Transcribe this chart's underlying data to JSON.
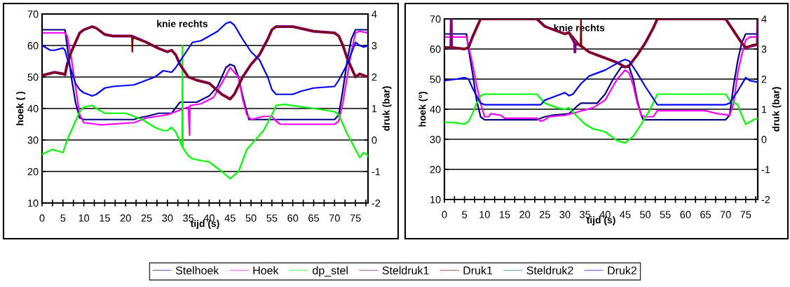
{
  "chart_data": [
    {
      "type": "line",
      "title": "knie rechts",
      "xlabel": "tijd (s)",
      "ylabel": "hoek ( )",
      "y2label": "druk (bar)",
      "xlim": [
        0,
        78
      ],
      "ylim": [
        10,
        70
      ],
      "y2lim": [
        -2,
        4
      ],
      "xticks": [
        0,
        {
          "value": 2.5,
          "label": null
        },
        5,
        {
          "value": 7.5,
          "label": null
        },
        10,
        {
          "value": 12.5,
          "label": null
        },
        15,
        {
          "value": 17.5,
          "label": null
        },
        20,
        {
          "value": 22.5,
          "label": null
        },
        25,
        {
          "value": 27.5,
          "label": null
        },
        30,
        {
          "value": 32.5,
          "label": null
        },
        35,
        {
          "value": 37.5,
          "label": null
        },
        40,
        {
          "value": 42.5,
          "label": null
        },
        45,
        {
          "value": 47.5,
          "label": null
        },
        50,
        {
          "value": 52.5,
          "label": null
        },
        55,
        {
          "value": 57.5,
          "label": null
        },
        60,
        {
          "value": 62.5,
          "label": null
        },
        65,
        {
          "value": 67.5,
          "label": null
        },
        70,
        {
          "value": 72.5,
          "label": null
        },
        75,
        {
          "value": 77.5,
          "label": null
        }
      ],
      "yticks": [
        10,
        20,
        30,
        40,
        50,
        60,
        70
      ],
      "y2ticks": [
        -2,
        -1,
        0,
        1,
        2,
        3,
        4
      ],
      "grid": "y",
      "legend": "bottom",
      "line_style": "solid",
      "series": [
        {
          "name": "Stelhoek",
          "color": "#000080",
          "x": [
            0,
            5.5,
            6,
            7,
            8,
            9,
            10,
            22,
            23,
            25,
            28,
            31,
            33,
            37,
            40,
            42,
            44,
            45,
            46,
            47,
            48,
            49.5,
            70,
            71,
            72,
            73,
            74,
            75,
            78
          ],
          "values": [
            65,
            65,
            60,
            50,
            42,
            37,
            36.5,
            36.5,
            37,
            37.5,
            38.5,
            38.5,
            42,
            42,
            44,
            47,
            53,
            54,
            53.5,
            50,
            44,
            36.5,
            36.5,
            38,
            46,
            55,
            62,
            65,
            65
          ]
        },
        {
          "name": "Hoek",
          "color": "#ff00ff",
          "x": [
            0,
            5.5,
            6,
            7,
            8,
            9,
            10,
            13,
            14,
            22,
            25,
            30,
            32,
            34,
            35,
            35.3,
            35.4,
            35.6,
            38,
            41,
            43,
            45,
            47,
            48,
            49,
            50,
            53,
            55,
            56,
            57,
            70,
            71,
            72,
            73,
            74,
            75,
            76,
            78
          ],
          "values": [
            64,
            64,
            63,
            56,
            47,
            38,
            35.5,
            35,
            34.8,
            35.5,
            37,
            38,
            39,
            40,
            40.5,
            31.5,
            40.8,
            41,
            41.5,
            43.5,
            48,
            53,
            50,
            43,
            38,
            36.5,
            37.5,
            37.5,
            36,
            35,
            35,
            36,
            42,
            50,
            58,
            64,
            64.5,
            64
          ]
        },
        {
          "name": "dp_stel",
          "color": "#00ff00",
          "axis": "y2",
          "x": [
            0,
            2.5,
            5,
            6,
            8,
            9,
            10,
            12,
            13,
            15,
            20,
            22,
            24,
            27,
            29,
            30,
            31,
            32,
            33.5,
            33.6,
            33.7,
            35,
            36,
            38,
            40,
            43,
            45,
            47,
            49,
            51,
            53,
            55,
            56,
            58,
            65,
            70,
            71,
            73,
            75,
            76,
            77,
            78
          ],
          "values": [
            -0.45,
            -0.3,
            -0.4,
            0,
            0.6,
            0.9,
            1.05,
            1.1,
            1.0,
            0.85,
            0.85,
            0.75,
            0.65,
            0.4,
            0.3,
            0.3,
            0.4,
            0.25,
            -0.2,
            3.0,
            -0.25,
            -0.5,
            -0.6,
            -0.65,
            -0.7,
            -1.0,
            -1.23,
            -1.0,
            -0.3,
            0,
            0.3,
            0.8,
            1.1,
            1.13,
            1.0,
            0.9,
            0.8,
            0.2,
            -0.3,
            -0.55,
            -0.4,
            -0.5
          ]
        },
        {
          "name": "Steldruk1",
          "color": "#800080",
          "axis": "y2",
          "x": [
            0,
            3,
            5,
            5.5,
            6,
            7,
            8,
            9,
            10,
            12,
            13,
            15,
            17,
            21.5,
            25,
            28,
            30,
            31,
            32,
            33,
            34,
            35,
            37,
            40,
            43,
            45,
            46,
            48,
            50,
            52,
            54,
            55,
            56,
            60,
            65,
            70,
            71,
            72,
            73,
            74,
            75,
            76,
            78
          ],
          "values": [
            2.05,
            2.15,
            2.1,
            2.07,
            2.4,
            2.8,
            3.1,
            3.4,
            3.5,
            3.6,
            3.55,
            3.35,
            3.3,
            3.3,
            3.1,
            2.9,
            2.8,
            2.85,
            2.7,
            2.4,
            2.2,
            2.0,
            1.9,
            1.8,
            1.45,
            1.3,
            1.45,
            2.0,
            2.4,
            2.7,
            3.2,
            3.5,
            3.6,
            3.6,
            3.45,
            3.4,
            3.3,
            3.0,
            2.6,
            2.3,
            2.0,
            2.1,
            2.0
          ]
        },
        {
          "name": "Druk1",
          "color": "#800000",
          "axis": "y2",
          "x": [
            0,
            3,
            5,
            5.5,
            6,
            7,
            8,
            9,
            10,
            12,
            13,
            15,
            17,
            21.5,
            21.6,
            21.7,
            25,
            28,
            30,
            31,
            32,
            33,
            34,
            35,
            37,
            40,
            43,
            45,
            46,
            48,
            50,
            52,
            54,
            55,
            56,
            60,
            65,
            70,
            71,
            72,
            73,
            74,
            75,
            76,
            78
          ],
          "values": [
            2.05,
            2.15,
            2.1,
            2.07,
            2.4,
            2.8,
            3.1,
            3.4,
            3.5,
            3.6,
            3.55,
            3.35,
            3.3,
            3.3,
            2.8,
            3.25,
            3.1,
            2.9,
            2.8,
            2.85,
            2.7,
            2.4,
            2.2,
            2.0,
            1.9,
            1.8,
            1.45,
            1.3,
            1.45,
            2.0,
            2.4,
            2.7,
            3.2,
            3.5,
            3.6,
            3.6,
            3.45,
            3.4,
            3.3,
            3.0,
            2.6,
            2.3,
            2.0,
            2.1,
            2.0
          ]
        },
        {
          "name": "Steldruk2",
          "color": "#008080",
          "axis": "y2",
          "values": [
            null
          ]
        },
        {
          "name": "Druk2",
          "color": "#0000ff",
          "axis": "y2",
          "x": [
            0,
            2,
            3,
            5,
            5.5,
            6,
            7,
            8,
            9,
            10,
            12,
            13,
            15,
            17,
            22,
            25,
            27,
            29,
            31,
            32,
            34,
            36,
            38,
            40,
            42,
            44,
            45,
            46,
            48,
            50,
            52,
            54,
            55,
            56,
            60,
            62,
            65,
            70,
            71,
            73,
            75,
            76,
            77,
            78
          ],
          "values": [
            3.0,
            2.85,
            2.85,
            2.92,
            2.85,
            2.6,
            2.2,
            1.8,
            1.6,
            1.5,
            1.4,
            1.45,
            1.65,
            1.7,
            1.75,
            1.9,
            2.0,
            2.2,
            2.15,
            2.3,
            2.7,
            3.1,
            3.15,
            3.3,
            3.45,
            3.7,
            3.75,
            3.65,
            3.2,
            2.8,
            2.55,
            2.0,
            1.6,
            1.45,
            1.45,
            1.55,
            1.65,
            1.7,
            1.9,
            2.4,
            3.1,
            3.0,
            2.95,
            3.0
          ]
        }
      ]
    },
    {
      "type": "line",
      "title": "knie rechts",
      "xlabel": "tijd (s)",
      "ylabel": "hoek (°)",
      "y2label": "druk (bar)",
      "xlim": [
        0,
        78
      ],
      "ylim": [
        10,
        70
      ],
      "y2lim": [
        -2,
        4
      ],
      "xticks": [
        0,
        {
          "value": 2.5,
          "label": null
        },
        5,
        {
          "value": 7.5,
          "label": null
        },
        10,
        {
          "value": 12.5,
          "label": null
        },
        15,
        {
          "value": 17.5,
          "label": null
        },
        20,
        {
          "value": 22.5,
          "label": null
        },
        25,
        {
          "value": 27.5,
          "label": null
        },
        30,
        {
          "value": 32.5,
          "label": null
        },
        35,
        {
          "value": 37.5,
          "label": null
        },
        40,
        {
          "value": 42.5,
          "label": null
        },
        45,
        {
          "value": 47.5,
          "label": null
        },
        50,
        {
          "value": 52.5,
          "label": null
        },
        55,
        {
          "value": 57.5,
          "label": null
        },
        60,
        {
          "value": 62.5,
          "label": null
        },
        65,
        {
          "value": 67.5,
          "label": null
        },
        70,
        {
          "value": 72.5,
          "label": null
        },
        75,
        {
          "value": 77.5,
          "label": null
        }
      ],
      "yticks": [
        10,
        20,
        30,
        40,
        50,
        60,
        70
      ],
      "y2ticks": [
        -2,
        -1,
        0,
        1,
        2,
        3,
        4
      ],
      "grid": "y",
      "line_style": "solid",
      "series": [
        {
          "color": "#000080",
          "x": [
            0,
            5.5,
            6,
            7,
            8,
            9,
            10,
            23,
            25,
            27,
            31,
            33,
            34,
            38,
            40,
            42,
            44,
            46,
            47,
            48,
            49,
            49.5,
            70,
            71,
            72,
            73,
            74,
            75,
            78
          ],
          "values": [
            65,
            65,
            60,
            52,
            43,
            37.5,
            36.5,
            36.5,
            37.5,
            38,
            38.5,
            41,
            42,
            42,
            45,
            50,
            54,
            54,
            50,
            43,
            38,
            36.5,
            36.5,
            38,
            48,
            56,
            62,
            65,
            65
          ]
        },
        {
          "color": "#ff00ff",
          "x": [
            0,
            5.5,
            6,
            7,
            8,
            9,
            10,
            11,
            11.5,
            14,
            15,
            23,
            24,
            25,
            26,
            30,
            33,
            37,
            40,
            43,
            45,
            46,
            47,
            48,
            49,
            50,
            52,
            53,
            65,
            68,
            71,
            72,
            73,
            74,
            75,
            76,
            78
          ],
          "values": [
            64,
            64,
            61,
            55,
            48,
            42,
            37.5,
            37.5,
            38.5,
            38,
            37,
            37,
            36,
            36.5,
            37.5,
            38,
            39,
            40.5,
            43,
            50,
            53,
            52,
            48,
            42,
            38,
            37.5,
            37.5,
            39.5,
            39.5,
            38.5,
            38,
            42,
            52,
            58,
            63,
            64,
            64
          ]
        },
        {
          "color": "#00ff00",
          "axis": "y2",
          "x": [
            0,
            3,
            5,
            6,
            7,
            8,
            9,
            10,
            23,
            25,
            28,
            30,
            31,
            32,
            35,
            37,
            40,
            43,
            45,
            47,
            49,
            51,
            53,
            70,
            71,
            73,
            74,
            75,
            77,
            78
          ],
          "values": [
            0.57,
            0.55,
            0.5,
            0.6,
            0.85,
            1.2,
            1.45,
            1.5,
            1.5,
            1.2,
            1.05,
            1.0,
            1.05,
            0.9,
            0.5,
            0.35,
            0.25,
            -0.05,
            -0.12,
            0.1,
            0.5,
            0.95,
            1.5,
            1.5,
            1.3,
            1.15,
            0.8,
            0.5,
            0.65,
            0.7
          ]
        },
        {
          "color": "#800080",
          "axis": "y2",
          "x": [
            0,
            1.6,
            1.7,
            1.8,
            5,
            6,
            7,
            8,
            9,
            23,
            25,
            28,
            30,
            31,
            32.4,
            32.5,
            32.6,
            34,
            36,
            38,
            40,
            43,
            45,
            46,
            48,
            50,
            52,
            53,
            70,
            72,
            74,
            75,
            77.9,
            78
          ],
          "values": [
            3.05,
            3.05,
            4.0,
            3.05,
            3.0,
            3.05,
            3.4,
            3.7,
            4.0,
            4.0,
            3.75,
            3.6,
            3.5,
            3.55,
            3.2,
            2.9,
            3.2,
            3.1,
            2.9,
            2.8,
            2.7,
            2.55,
            2.4,
            2.45,
            2.8,
            3.2,
            3.7,
            4.0,
            4.0,
            3.6,
            3.2,
            3.05,
            3.15,
            4.0
          ]
        },
        {
          "color": "#800000",
          "axis": "y2",
          "x": [
            0,
            2,
            5,
            6,
            7,
            8,
            9,
            23,
            25,
            28,
            30,
            31,
            32,
            33.9,
            34,
            34.1,
            36,
            38,
            40,
            43,
            45,
            46,
            48,
            50,
            52,
            53,
            70,
            72,
            74,
            75,
            77,
            78
          ],
          "values": [
            3.05,
            3.05,
            3.0,
            3.05,
            3.4,
            3.7,
            4.0,
            4.0,
            3.75,
            3.6,
            3.5,
            3.55,
            3.4,
            3.1,
            4.0,
            3.1,
            2.9,
            2.8,
            2.7,
            2.55,
            2.4,
            2.45,
            2.8,
            3.2,
            3.7,
            4.0,
            4.0,
            3.6,
            3.2,
            3.05,
            3.15,
            3.15
          ]
        },
        {
          "color": "#008080",
          "axis": "y2",
          "values": [
            null
          ]
        },
        {
          "color": "#0000ff",
          "axis": "y2",
          "x": [
            0,
            3,
            5,
            6,
            7,
            8,
            9,
            10,
            24,
            25,
            27,
            29,
            30,
            31,
            32,
            34,
            36,
            38,
            40,
            42,
            44,
            45,
            46,
            48,
            50,
            52,
            53,
            70,
            71,
            73,
            75,
            76,
            78
          ],
          "values": [
            1.95,
            2.0,
            2.05,
            2.0,
            1.7,
            1.45,
            1.2,
            1.15,
            1.15,
            1.3,
            1.4,
            1.5,
            1.55,
            1.45,
            1.5,
            1.85,
            2.1,
            2.2,
            2.3,
            2.45,
            2.6,
            2.65,
            2.6,
            2.2,
            1.75,
            1.35,
            1.15,
            1.15,
            1.2,
            1.6,
            2.05,
            1.95,
            1.9
          ]
        }
      ]
    }
  ]
}
